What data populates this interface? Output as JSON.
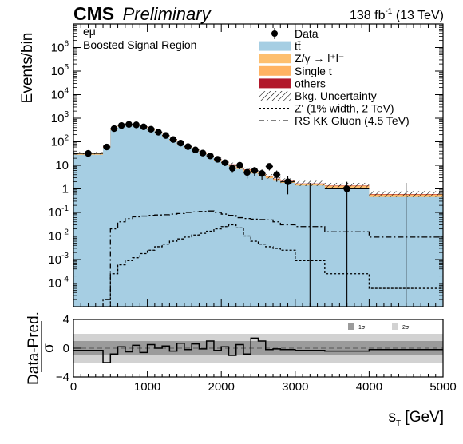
{
  "header": {
    "experiment": "CMS",
    "status": "Preliminary",
    "lumi_main": "138 fb",
    "lumi_exp": "-1",
    "lumi_energy": " (13 TeV)"
  },
  "labels": {
    "channel": "eμ",
    "region": "Boosted Signal Region"
  },
  "colors": {
    "ttbar": "#a6cee3",
    "zgamma": "#fdbf6f",
    "single_t": "#ffb363",
    "others": "#b2182b",
    "data": "#000000",
    "ratio_band_1sigma": "#9b9b9b",
    "ratio_band_2sigma": "#d2d2d2"
  },
  "chart_data": [
    {
      "type": "histogram",
      "title": "",
      "xlabel": "s_T [GeV]",
      "ylabel": "Events/bin",
      "xlim": [
        0,
        5000
      ],
      "ylim": [
        1e-05,
        10000000
      ],
      "yscale": "log",
      "yticks": [
        {
          "base": "10",
          "exp": "6"
        },
        {
          "base": "10",
          "exp": "5"
        },
        {
          "base": "10",
          "exp": "4"
        },
        {
          "base": "10",
          "exp": "3"
        },
        {
          "base": "10",
          "exp": "2"
        },
        {
          "base": "10",
          "exp": ""
        },
        {
          "base": "1",
          "exp": ""
        },
        {
          "base": "10",
          "exp": "-1"
        },
        {
          "base": "10",
          "exp": "-2"
        },
        {
          "base": "10",
          "exp": "-3"
        },
        {
          "base": "10",
          "exp": "-4"
        }
      ],
      "ytick_values": [
        1000000,
        100000,
        10000,
        1000,
        100,
        10,
        1,
        0.1,
        0.01,
        0.001,
        0.0001
      ],
      "legend": [
        {
          "key": "data",
          "label": "Data",
          "style": "marker"
        },
        {
          "key": "ttbar",
          "label": "tt̄",
          "style": "fill"
        },
        {
          "key": "zgamma",
          "label": "Z/γ → l⁺l⁻",
          "style": "fill"
        },
        {
          "key": "single_t",
          "label": "Single t",
          "style": "fill"
        },
        {
          "key": "others",
          "label": "others",
          "style": "fill"
        },
        {
          "key": "uncertainty",
          "label": "Bkg. Uncertainty",
          "style": "hatch"
        },
        {
          "key": "zprime",
          "label": "Z' (1% width, 2 TeV)",
          "style": "dashed"
        },
        {
          "key": "kkgluon",
          "label": "RS KK Gluon (4.5 TeV)",
          "style": "dashdot"
        }
      ],
      "legend_position": "top-right",
      "bin_edges": [
        0,
        400,
        500,
        600,
        700,
        800,
        900,
        1000,
        1100,
        1200,
        1300,
        1400,
        1500,
        1600,
        1700,
        1800,
        1900,
        2000,
        2100,
        2200,
        2300,
        2400,
        2500,
        2600,
        2700,
        2800,
        3000,
        3400,
        4000,
        5000
      ],
      "ttbar": [
        28,
        55,
        320,
        430,
        480,
        460,
        390,
        300,
        220,
        160,
        112,
        78,
        55,
        40,
        30,
        22,
        16,
        12,
        9,
        7,
        5.5,
        4.5,
        3.5,
        2.8,
        2.2,
        1.8,
        1.4,
        1.1,
        0.45
      ],
      "background_total": [
        33,
        65,
        370,
        500,
        560,
        540,
        455,
        350,
        258,
        188,
        132,
        92,
        65,
        48,
        36,
        26,
        19,
        14.5,
        11,
        8.5,
        6.7,
        5.5,
        4.3,
        3.4,
        2.7,
        2.2,
        1.7,
        1.4,
        0.6
      ],
      "uncertainty_up": [
        37,
        72,
        400,
        545,
        610,
        590,
        500,
        385,
        285,
        208,
        147,
        103,
        73,
        54,
        41,
        30,
        22,
        17,
        13,
        10,
        8,
        6.6,
        5.2,
        4.2,
        3.4,
        2.8,
        2.2,
        1.8,
        0.8
      ],
      "data_x": [
        200,
        450,
        550,
        650,
        750,
        850,
        950,
        1050,
        1150,
        1250,
        1350,
        1450,
        1550,
        1650,
        1750,
        1850,
        1950,
        2050,
        2150,
        2250,
        2350,
        2450,
        2550,
        2650,
        2750,
        2900,
        3200,
        3700,
        4500
      ],
      "data_y": [
        32,
        60,
        360,
        490,
        545,
        520,
        430,
        340,
        255,
        185,
        125,
        88,
        62,
        45,
        33,
        25,
        18,
        13,
        7.5,
        10,
        5,
        6,
        4.5,
        9,
        4,
        2,
        0,
        1,
        0
      ],
      "zprime": [
        0,
        3e-06,
        0.00025,
        0.0006,
        0.0009,
        0.0012,
        0.0018,
        0.0025,
        0.0035,
        0.0045,
        0.006,
        0.0075,
        0.009,
        0.011,
        0.013,
        0.016,
        0.02,
        0.025,
        0.03,
        0.022,
        0.01,
        0.006,
        0.0045,
        0.0035,
        0.003,
        0.0025,
        0.0009,
        0.00025,
        6e-05
      ],
      "kkgluon": [
        4e-07,
        2e-05,
        0.02,
        0.04,
        0.055,
        0.065,
        0.07,
        0.075,
        0.078,
        0.08,
        0.085,
        0.09,
        0.1,
        0.105,
        0.11,
        0.115,
        0.1,
        0.085,
        0.075,
        0.06,
        0.055,
        0.052,
        0.05,
        0.048,
        0.04,
        0.03,
        0.025,
        0.015,
        0.009
      ]
    },
    {
      "type": "line",
      "title": "",
      "xlabel": "s_T [GeV]",
      "ylabel": "(Data-Pred.)/σ",
      "ylabel_num": "Data-Pred.",
      "ylabel_den": "σ",
      "xlim": [
        0,
        5000
      ],
      "ylim": [
        -4,
        4
      ],
      "yticks": [
        4,
        0,
        -4
      ],
      "xticks": [
        0,
        1000,
        2000,
        3000,
        4000,
        5000
      ],
      "bands": [
        {
          "label": "1σ",
          "range": [
            -1,
            1
          ]
        },
        {
          "label": "2σ",
          "range": [
            -2,
            2
          ]
        }
      ],
      "bin_edges": [
        0,
        400,
        500,
        600,
        700,
        800,
        900,
        1000,
        1100,
        1200,
        1300,
        1400,
        1500,
        1600,
        1700,
        1800,
        1900,
        2000,
        2100,
        2200,
        2300,
        2400,
        2500,
        2600,
        2700,
        2800,
        3000,
        3400,
        4000,
        5000
      ],
      "values": [
        -0.3,
        -2.0,
        -0.8,
        0.2,
        -0.5,
        0.4,
        -0.6,
        0.5,
        0.0,
        0.3,
        -0.4,
        0.7,
        -0.2,
        0.6,
        -0.1,
        1.0,
        -0.3,
        0.2,
        -1.0,
        0.5,
        -0.8,
        1.4,
        1.0,
        -0.2,
        -0.1,
        -0.2,
        -0.3,
        -0.4,
        -0.2
      ]
    }
  ]
}
